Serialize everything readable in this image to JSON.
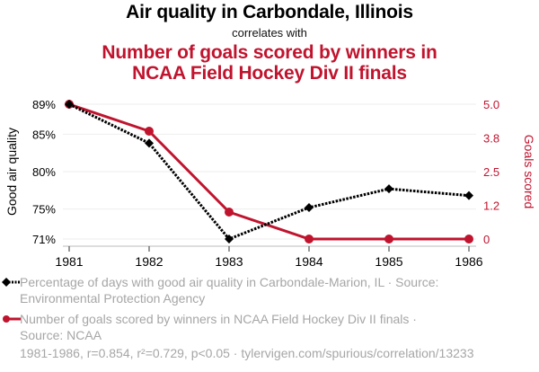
{
  "title": "Air quality in Carbondale, Illinois",
  "subtitle": "correlates with",
  "title2_line1": "Number of goals scored by winners in",
  "title2_line2": "NCAA Field Hockey Div II finals",
  "legend": [
    {
      "line1": "Percentage of days with good air quality in Carbondale-Marion, IL · Source:",
      "line2": "Environmental Protection Agency",
      "color": "#000000",
      "marker": "diamond",
      "style": "dotted"
    },
    {
      "line1": "Number of goals scored by winners in NCAA Field Hockey Div II finals ·",
      "line2": "Source: NCAA",
      "color": "#c0142e",
      "marker": "circle",
      "style": "solid"
    }
  ],
  "footer": "1981-1986, r=0.854, r²=0.729, p<0.05 · tylervigen.com/spurious/correlation/13233",
  "chart_data": {
    "type": "line",
    "title": "Air quality in Carbondale, Illinois correlates with Number of goals scored by winners in NCAA Field Hockey Div II finals",
    "x": [
      "1981",
      "1982",
      "1983",
      "1984",
      "1985",
      "1986"
    ],
    "xlabel": "",
    "series": [
      {
        "name": "Percentage of days with good air quality in Carbondale-Marion, IL",
        "axis": "left",
        "color": "#000000",
        "values": [
          89.0,
          83.8,
          71.0,
          75.2,
          77.7,
          76.8
        ]
      },
      {
        "name": "Number of goals scored by winners in NCAA Field Hockey Div II finals",
        "axis": "right",
        "color": "#c0142e",
        "values": [
          5,
          4,
          1,
          0,
          0,
          0
        ]
      }
    ],
    "y_left": {
      "label": "Good air quality",
      "ticks": [
        "89%",
        "85%",
        "80%",
        "75%",
        "71%"
      ],
      "tick_values": [
        89,
        85,
        80,
        75,
        71
      ],
      "range": [
        71,
        89
      ]
    },
    "y_right": {
      "label": "Goals scored",
      "ticks": [
        "5.0",
        "3.8",
        "2.5",
        "1.2",
        "0"
      ],
      "tick_values": [
        5,
        3.75,
        2.5,
        1.25,
        0
      ],
      "range": [
        0,
        5
      ],
      "color": "#c0142e"
    },
    "grid": true,
    "legend_position": "bottom"
  }
}
